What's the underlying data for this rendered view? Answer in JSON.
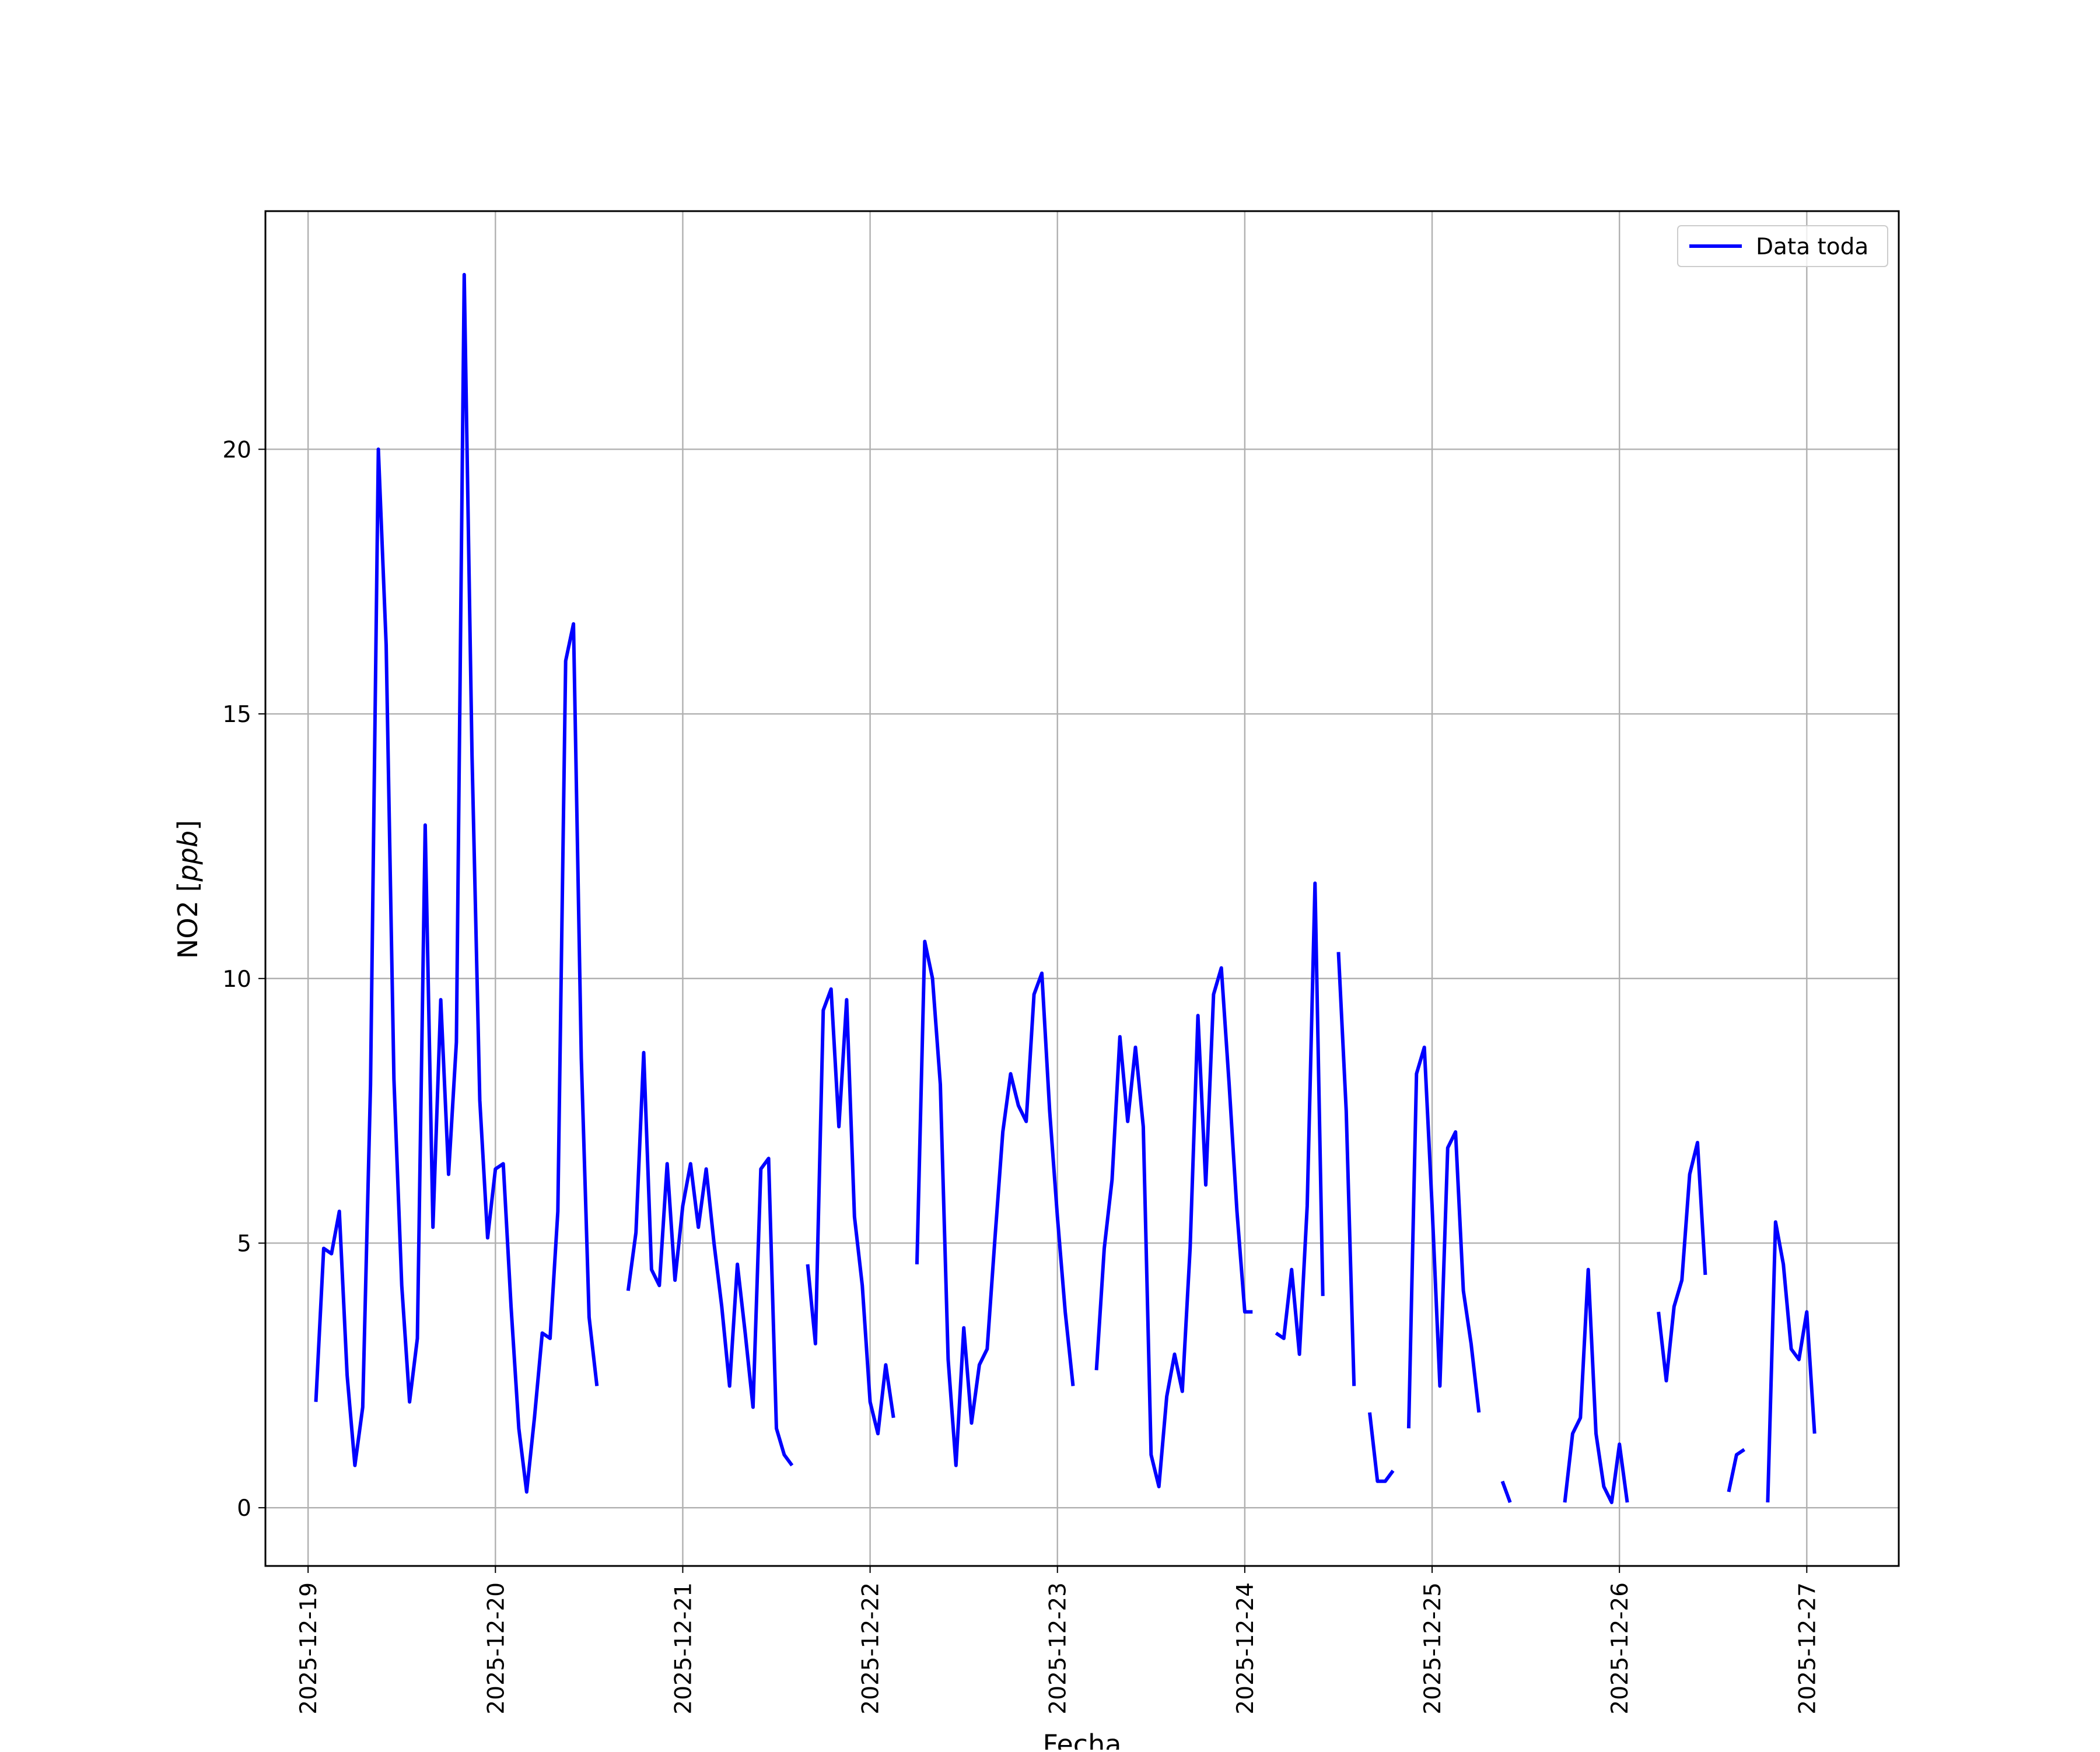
{
  "chart_data": {
    "type": "line",
    "xlabel": "Fecha",
    "ylabel": "NO2 ",
    "ylabel_unit": "ppb",
    "x_tick_labels": [
      "2025-12-19",
      "2025-12-20",
      "2025-12-21",
      "2025-12-22",
      "2025-12-23",
      "2025-12-24",
      "2025-12-25",
      "2025-12-26",
      "2025-12-27"
    ],
    "y_tick_labels": [
      "0",
      "5",
      "10",
      "15",
      "20"
    ],
    "xlim": [
      "2025-12-18 18:32",
      "2025-12-27 11:47"
    ],
    "ylim": [
      -1.1,
      24.5
    ],
    "grid": true,
    "legend_position": "top-right",
    "series": [
      {
        "name": "Data toda",
        "color": "#0000ff",
        "points": [
          [
            "2025-12-19 01:00",
            2.0
          ],
          [
            "2025-12-19 02:00",
            4.9
          ],
          [
            "2025-12-19 03:00",
            4.8
          ],
          [
            "2025-12-19 04:00",
            5.6
          ],
          [
            "2025-12-19 05:00",
            2.5
          ],
          [
            "2025-12-19 06:00",
            0.8
          ],
          [
            "2025-12-19 07:00",
            1.9
          ],
          [
            "2025-12-19 08:00",
            8.0
          ],
          [
            "2025-12-19 09:00",
            20.0
          ],
          [
            "2025-12-19 10:00",
            16.3
          ],
          [
            "2025-12-19 11:00",
            8.1
          ],
          [
            "2025-12-19 12:00",
            4.2
          ],
          [
            "2025-12-19 13:00",
            2.0
          ],
          [
            "2025-12-19 14:00",
            3.2
          ],
          [
            "2025-12-19 15:00",
            12.9
          ],
          [
            "2025-12-19 16:00",
            5.3
          ],
          [
            "2025-12-19 17:00",
            9.6
          ],
          [
            "2025-12-19 18:00",
            6.3
          ],
          [
            "2025-12-19 19:00",
            8.8
          ],
          [
            "2025-12-19 20:00",
            23.3
          ],
          [
            "2025-12-19 21:00",
            14.2
          ],
          [
            "2025-12-19 22:00",
            7.7
          ],
          [
            "2025-12-19 23:00",
            5.1
          ],
          [
            "2025-12-20 00:00",
            6.4
          ],
          [
            "2025-12-20 01:00",
            6.5
          ],
          [
            "2025-12-20 02:00",
            3.8
          ],
          [
            "2025-12-20 03:00",
            1.5
          ],
          [
            "2025-12-20 04:00",
            0.3
          ],
          [
            "2025-12-20 05:00",
            1.7
          ],
          [
            "2025-12-20 06:00",
            3.3
          ],
          [
            "2025-12-20 07:00",
            3.2
          ],
          [
            "2025-12-20 08:00",
            5.6
          ],
          [
            "2025-12-20 09:00",
            16.0
          ],
          [
            "2025-12-20 10:00",
            16.7
          ],
          [
            "2025-12-20 11:00",
            8.5
          ],
          [
            "2025-12-20 12:00",
            3.6
          ],
          [
            "2025-12-20 13:00",
            2.3
          ],
          [
            "2025-12-20 14:00",
            null
          ],
          [
            "2025-12-20 15:00",
            null
          ],
          [
            "2025-12-20 16:00",
            null
          ],
          [
            "2025-12-20 17:00",
            4.1
          ],
          [
            "2025-12-20 18:00",
            5.2
          ],
          [
            "2025-12-20 19:00",
            8.6
          ],
          [
            "2025-12-20 20:00",
            4.5
          ],
          [
            "2025-12-20 21:00",
            4.2
          ],
          [
            "2025-12-20 22:00",
            6.5
          ],
          [
            "2025-12-20 23:00",
            4.3
          ],
          [
            "2025-12-21 00:00",
            5.7
          ],
          [
            "2025-12-21 01:00",
            6.5
          ],
          [
            "2025-12-21 02:00",
            5.3
          ],
          [
            "2025-12-21 03:00",
            6.4
          ],
          [
            "2025-12-21 04:00",
            5.0
          ],
          [
            "2025-12-21 05:00",
            3.8
          ],
          [
            "2025-12-21 06:00",
            2.3
          ],
          [
            "2025-12-21 07:00",
            4.6
          ],
          [
            "2025-12-21 08:00",
            3.3
          ],
          [
            "2025-12-21 09:00",
            1.9
          ],
          [
            "2025-12-21 10:00",
            6.4
          ],
          [
            "2025-12-21 11:00",
            6.6
          ],
          [
            "2025-12-21 12:00",
            1.5
          ],
          [
            "2025-12-21 13:00",
            1.0
          ],
          [
            "2025-12-21 14:00",
            0.8
          ],
          [
            "2025-12-21 15:00",
            null
          ],
          [
            "2025-12-21 16:00",
            4.6
          ],
          [
            "2025-12-21 17:00",
            3.1
          ],
          [
            "2025-12-21 18:00",
            9.4
          ],
          [
            "2025-12-21 19:00",
            9.8
          ],
          [
            "2025-12-21 20:00",
            7.2
          ],
          [
            "2025-12-21 21:00",
            9.6
          ],
          [
            "2025-12-21 22:00",
            5.5
          ],
          [
            "2025-12-21 23:00",
            4.2
          ],
          [
            "2025-12-22 00:00",
            2.0
          ],
          [
            "2025-12-22 01:00",
            1.4
          ],
          [
            "2025-12-22 02:00",
            2.7
          ],
          [
            "2025-12-22 03:00",
            1.7
          ],
          [
            "2025-12-22 04:00",
            null
          ],
          [
            "2025-12-22 05:00",
            null
          ],
          [
            "2025-12-22 06:00",
            4.6
          ],
          [
            "2025-12-22 07:00",
            10.7
          ],
          [
            "2025-12-22 08:00",
            10.0
          ],
          [
            "2025-12-22 09:00",
            8.0
          ],
          [
            "2025-12-22 10:00",
            2.8
          ],
          [
            "2025-12-22 11:00",
            0.8
          ],
          [
            "2025-12-22 12:00",
            3.4
          ],
          [
            "2025-12-22 13:00",
            1.6
          ],
          [
            "2025-12-22 14:00",
            2.7
          ],
          [
            "2025-12-22 15:00",
            3.0
          ],
          [
            "2025-12-22 16:00",
            5.1
          ],
          [
            "2025-12-22 17:00",
            7.1
          ],
          [
            "2025-12-22 18:00",
            8.2
          ],
          [
            "2025-12-22 19:00",
            7.6
          ],
          [
            "2025-12-22 20:00",
            7.3
          ],
          [
            "2025-12-22 21:00",
            9.7
          ],
          [
            "2025-12-22 22:00",
            10.1
          ],
          [
            "2025-12-22 23:00",
            7.5
          ],
          [
            "2025-12-23 00:00",
            5.5
          ],
          [
            "2025-12-23 01:00",
            3.7
          ],
          [
            "2025-12-23 02:00",
            2.3
          ],
          [
            "2025-12-23 03:00",
            null
          ],
          [
            "2025-12-23 04:00",
            null
          ],
          [
            "2025-12-23 05:00",
            2.6
          ],
          [
            "2025-12-23 06:00",
            4.9
          ],
          [
            "2025-12-23 07:00",
            6.2
          ],
          [
            "2025-12-23 08:00",
            8.9
          ],
          [
            "2025-12-23 09:00",
            7.3
          ],
          [
            "2025-12-23 10:00",
            8.7
          ],
          [
            "2025-12-23 11:00",
            7.2
          ],
          [
            "2025-12-23 12:00",
            1.0
          ],
          [
            "2025-12-23 13:00",
            0.4
          ],
          [
            "2025-12-23 14:00",
            2.1
          ],
          [
            "2025-12-23 15:00",
            2.9
          ],
          [
            "2025-12-23 16:00",
            2.2
          ],
          [
            "2025-12-23 17:00",
            4.9
          ],
          [
            "2025-12-23 18:00",
            9.3
          ],
          [
            "2025-12-23 19:00",
            6.1
          ],
          [
            "2025-12-23 20:00",
            9.7
          ],
          [
            "2025-12-23 21:00",
            10.2
          ],
          [
            "2025-12-23 22:00",
            8.0
          ],
          [
            "2025-12-23 23:00",
            5.6
          ],
          [
            "2025-12-24 00:00",
            3.7
          ],
          [
            "2025-12-24 01:00",
            3.7
          ],
          [
            "2025-12-24 02:00",
            null
          ],
          [
            "2025-12-24 03:00",
            null
          ],
          [
            "2025-12-24 04:00",
            3.3
          ],
          [
            "2025-12-24 05:00",
            3.2
          ],
          [
            "2025-12-24 06:00",
            4.5
          ],
          [
            "2025-12-24 07:00",
            2.9
          ],
          [
            "2025-12-24 08:00",
            5.7
          ],
          [
            "2025-12-24 09:00",
            11.8
          ],
          [
            "2025-12-24 10:00",
            4.0
          ],
          [
            "2025-12-24 11:00",
            null
          ],
          [
            "2025-12-24 12:00",
            10.5
          ],
          [
            "2025-12-24 13:00",
            7.5
          ],
          [
            "2025-12-24 14:00",
            2.3
          ],
          [
            "2025-12-24 15:00",
            null
          ],
          [
            "2025-12-24 16:00",
            1.8
          ],
          [
            "2025-12-24 17:00",
            0.5
          ],
          [
            "2025-12-24 18:00",
            0.5
          ],
          [
            "2025-12-24 19:00",
            0.7
          ],
          [
            "2025-12-24 20:00",
            null
          ],
          [
            "2025-12-24 21:00",
            1.5
          ],
          [
            "2025-12-24 22:00",
            8.2
          ],
          [
            "2025-12-24 23:00",
            8.7
          ],
          [
            "2025-12-25 00:00",
            5.7
          ],
          [
            "2025-12-25 01:00",
            2.3
          ],
          [
            "2025-12-25 02:00",
            6.8
          ],
          [
            "2025-12-25 03:00",
            7.1
          ],
          [
            "2025-12-25 04:00",
            4.1
          ],
          [
            "2025-12-25 05:00",
            3.1
          ],
          [
            "2025-12-25 06:00",
            1.8
          ],
          [
            "2025-12-25 07:00",
            null
          ],
          [
            "2025-12-25 08:00",
            null
          ],
          [
            "2025-12-25 09:00",
            0.5
          ],
          [
            "2025-12-25 10:00",
            0.1
          ],
          [
            "2025-12-25 11:00",
            null
          ],
          [
            "2025-12-25 12:00",
            null
          ],
          [
            "2025-12-25 13:00",
            null
          ],
          [
            "2025-12-25 14:00",
            null
          ],
          [
            "2025-12-25 15:00",
            null
          ],
          [
            "2025-12-25 16:00",
            null
          ],
          [
            "2025-12-25 17:00",
            0.1
          ],
          [
            "2025-12-25 18:00",
            1.4
          ],
          [
            "2025-12-25 19:00",
            1.7
          ],
          [
            "2025-12-25 20:00",
            4.5
          ],
          [
            "2025-12-25 21:00",
            1.4
          ],
          [
            "2025-12-25 22:00",
            0.4
          ],
          [
            "2025-12-25 23:00",
            0.1
          ],
          [
            "2025-12-26 00:00",
            1.2
          ],
          [
            "2025-12-26 01:00",
            0.1
          ],
          [
            "2025-12-26 02:00",
            null
          ],
          [
            "2025-12-26 03:00",
            null
          ],
          [
            "2025-12-26 04:00",
            null
          ],
          [
            "2025-12-26 05:00",
            3.7
          ],
          [
            "2025-12-26 06:00",
            2.4
          ],
          [
            "2025-12-26 07:00",
            3.8
          ],
          [
            "2025-12-26 08:00",
            4.3
          ],
          [
            "2025-12-26 09:00",
            6.3
          ],
          [
            "2025-12-26 10:00",
            6.9
          ],
          [
            "2025-12-26 11:00",
            4.4
          ],
          [
            "2025-12-26 12:00",
            null
          ],
          [
            "2025-12-26 13:00",
            null
          ],
          [
            "2025-12-26 14:00",
            0.3
          ],
          [
            "2025-12-26 15:00",
            1.0
          ],
          [
            "2025-12-26 16:00",
            1.1
          ],
          [
            "2025-12-26 17:00",
            null
          ],
          [
            "2025-12-26 18:00",
            null
          ],
          [
            "2025-12-26 19:00",
            0.1
          ],
          [
            "2025-12-26 20:00",
            5.4
          ],
          [
            "2025-12-26 21:00",
            4.6
          ],
          [
            "2025-12-26 22:00",
            3.0
          ],
          [
            "2025-12-26 23:00",
            2.8
          ],
          [
            "2025-12-27 00:00",
            3.7
          ],
          [
            "2025-12-27 01:00",
            1.4
          ]
        ]
      }
    ]
  }
}
